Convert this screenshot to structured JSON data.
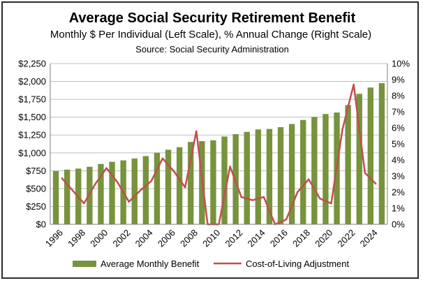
{
  "chart_data": {
    "type": "bar",
    "title": "Average Social Security Retirement Benefit",
    "subtitle": "Monthly $ Per Individual (Left Scale), % Annual Change (Right Scale)",
    "source": "Source:  Social Security Administration",
    "years": [
      1996,
      1997,
      1998,
      1999,
      2000,
      2001,
      2002,
      2003,
      2004,
      2005,
      2006,
      2007,
      2008,
      2009,
      2010,
      2011,
      2012,
      2013,
      2014,
      2015,
      2016,
      2017,
      2018,
      2019,
      2020,
      2021,
      2022,
      2023,
      2024,
      2025
    ],
    "x_tick_labels": [
      "1996",
      "1998",
      "2000",
      "2002",
      "2004",
      "2006",
      "2008",
      "2010",
      "2012",
      "2014",
      "2016",
      "2018",
      "2020",
      "2022",
      "2024"
    ],
    "ylim_left": [
      0,
      2250
    ],
    "ylim_right": [
      0,
      10
    ],
    "y_left_ticks": [
      "$0",
      "$250",
      "$500",
      "$750",
      "$1,000",
      "$1,250",
      "$1,500",
      "$1,750",
      "$2,000",
      "$2,250"
    ],
    "y_right_ticks": [
      "0%",
      "1%",
      "2%",
      "3%",
      "4%",
      "5%",
      "6%",
      "7%",
      "8%",
      "9%",
      "10%"
    ],
    "grid": true,
    "legend_position": "bottom",
    "series": [
      {
        "name": "Average Monthly Benefit",
        "type": "bar",
        "axis": "left",
        "color": "#77933c",
        "values": [
          745,
          765,
          780,
          805,
          845,
          875,
          895,
          922,
          955,
          1002,
          1044,
          1079,
          1153,
          1164,
          1176,
          1229,
          1262,
          1294,
          1328,
          1335,
          1360,
          1404,
          1461,
          1503,
          1544,
          1565,
          1669,
          1827,
          1915,
          1976
        ]
      },
      {
        "name": "Cost-of-Living Adjustment",
        "type": "line",
        "axis": "right",
        "color": "#c0504d",
        "values": [
          2.9,
          2.1,
          1.3,
          2.5,
          3.5,
          2.6,
          1.4,
          2.1,
          2.7,
          4.1,
          3.3,
          2.3,
          5.8,
          0.0,
          0.0,
          3.6,
          1.7,
          1.5,
          1.7,
          0.0,
          0.3,
          2.0,
          2.8,
          1.6,
          1.3,
          5.9,
          8.7,
          3.2,
          2.5
        ]
      }
    ]
  }
}
